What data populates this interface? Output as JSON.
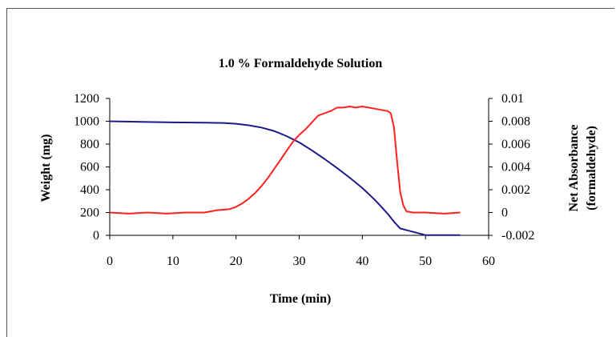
{
  "chart_data": {
    "type": "line",
    "title": "1.0 % Formaldehyde Solution",
    "xlabel": "Time (min)",
    "ylabel": "Weight (mg)",
    "y2label": [
      "Net Absorbance",
      "(formaldehyde)"
    ],
    "xlim": [
      0,
      60
    ],
    "ylim": [
      0,
      1200
    ],
    "y2lim": [
      -0.002,
      0.01
    ],
    "x_ticks": [
      "0",
      "10",
      "20",
      "30",
      "40",
      "50",
      "60"
    ],
    "y_ticks": [
      "0",
      "200",
      "400",
      "600",
      "800",
      "1000",
      "1200"
    ],
    "y2_ticks": [
      "-0.002",
      "0",
      "0.002",
      "0.004",
      "0.006",
      "0.008",
      "0.01"
    ],
    "grid": false,
    "series": [
      {
        "axis": "left",
        "color": "#1a1a8c",
        "x": [
          0,
          5,
          10,
          15,
          18,
          20,
          22,
          24,
          26,
          28,
          30,
          32,
          34,
          36,
          38,
          40,
          42,
          44,
          45,
          46,
          50,
          55.5
        ],
        "y": [
          1000,
          995,
          990,
          988,
          985,
          978,
          965,
          945,
          915,
          870,
          815,
          745,
          670,
          590,
          505,
          415,
          310,
          190,
          120,
          60,
          2,
          2
        ]
      },
      {
        "axis": "right",
        "color": "#ff2020",
        "x": [
          0,
          3,
          6,
          9,
          12,
          15,
          17,
          19,
          20,
          21,
          22,
          23,
          24,
          25,
          26,
          27,
          28,
          29,
          30,
          31,
          32,
          33,
          34,
          35,
          36,
          37,
          38,
          39,
          40,
          41,
          42,
          43,
          44,
          44.5,
          45,
          45.5,
          46,
          46.5,
          47,
          48,
          50,
          53,
          55.5
        ],
        "y": [
          0.0,
          -0.0001,
          0.0,
          -0.0001,
          0.0,
          0.0,
          0.0002,
          0.0003,
          0.0005,
          0.0008,
          0.0012,
          0.0017,
          0.0023,
          0.003,
          0.0038,
          0.0046,
          0.0054,
          0.0062,
          0.0068,
          0.0073,
          0.0079,
          0.0085,
          0.0087,
          0.0089,
          0.0092,
          0.0092,
          0.0093,
          0.0092,
          0.0093,
          0.0092,
          0.0091,
          0.009,
          0.0089,
          0.0087,
          0.0075,
          0.0045,
          0.0018,
          0.0006,
          0.0001,
          0.0,
          0.0,
          -0.0001,
          0.0
        ]
      }
    ]
  }
}
